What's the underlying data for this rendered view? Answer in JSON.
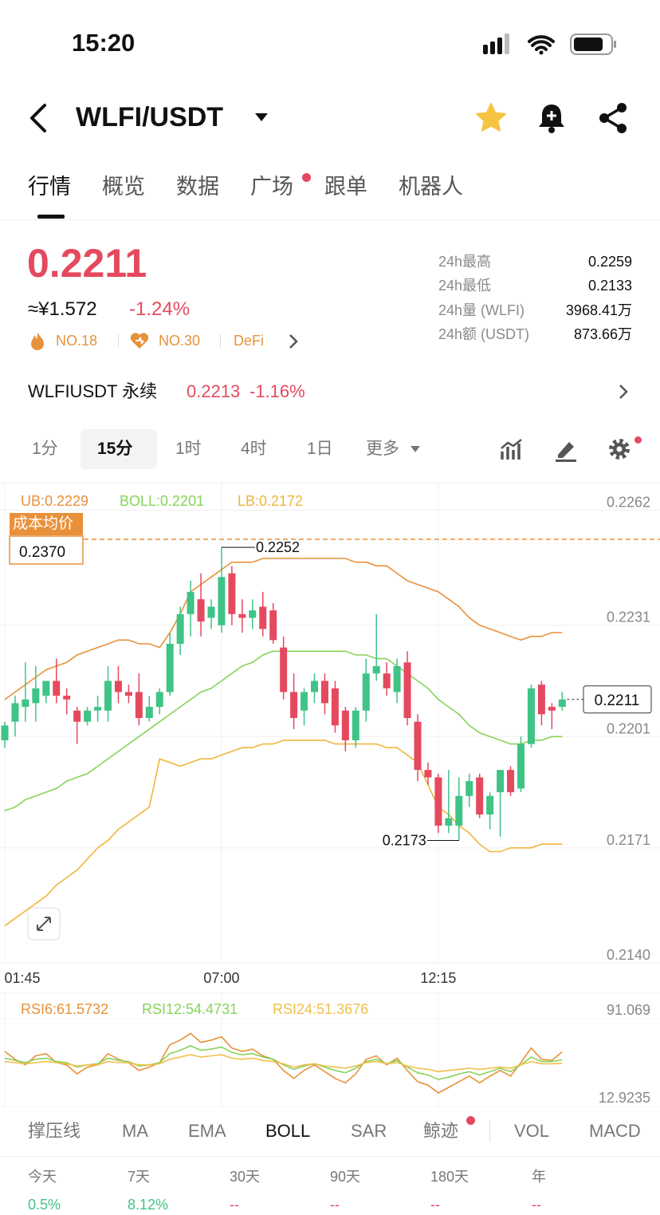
{
  "status_bar": {
    "time": "15:20"
  },
  "header": {
    "pair": "WLFI/USDT"
  },
  "tabs": [
    "行情",
    "概览",
    "数据",
    "广场",
    "跟单",
    "机器人"
  ],
  "price": {
    "last": "0.2211",
    "cny": "≈¥1.572",
    "change": "-1.24%",
    "badges": [
      "NO.18",
      "NO.30",
      "DeFi"
    ]
  },
  "stats": [
    {
      "label": "24h最高",
      "value": "0.2259"
    },
    {
      "label": "24h最低",
      "value": "0.2133"
    },
    {
      "label": "24h量 (WLFI)",
      "value": "3968.41万"
    },
    {
      "label": "24h额 (USDT)",
      "value": "873.66万"
    }
  ],
  "contract": {
    "name": "WLFIUSDT 永续",
    "price": "0.2213",
    "change": "-1.16%"
  },
  "intervals": [
    "1分",
    "15分",
    "1时",
    "4时",
    "1日",
    "更多"
  ],
  "chart": {
    "type": "candlestick",
    "up_color": "#3fc386",
    "down_color": "#e5495f",
    "ylim": [
      0.214,
      0.2269
    ],
    "yticks": [
      0.2262,
      0.2231,
      0.2201,
      0.2171,
      {
        "value": 0.214,
        "label": "0.2140"
      }
    ],
    "xticks": [
      {
        "value": 0,
        "label": "01:45"
      },
      {
        "value": 21,
        "label": "07:00"
      },
      {
        "value": 42,
        "label": "12:15"
      }
    ],
    "grid": true,
    "open": [
      0.22,
      0.2205,
      0.2209,
      0.221,
      0.2212,
      0.2216,
      0.2212,
      0.2208,
      0.2205,
      0.2208,
      0.2208,
      0.2216,
      0.2213,
      0.2213,
      0.2206,
      0.2209,
      0.2213,
      0.2226,
      0.2234,
      0.2238,
      0.2233,
      0.2231,
      0.2245,
      0.2234,
      0.2233,
      0.2236,
      0.2235,
      0.2225,
      0.2213,
      0.2208,
      0.2213,
      0.2216,
      0.2214,
      0.2208,
      0.22,
      0.2208,
      0.2218,
      0.2218,
      0.2213,
      0.2221,
      0.2205,
      0.2192,
      0.219,
      0.2177,
      0.2177,
      0.2185,
      0.219,
      0.218,
      0.2186,
      0.2192,
      0.2187,
      0.2199,
      0.2215,
      0.2209,
      0.2209
    ],
    "high": [
      0.2205,
      0.2212,
      0.2221,
      0.222,
      0.2216,
      0.2222,
      0.2214,
      0.2209,
      0.2209,
      0.2212,
      0.222,
      0.222,
      0.2215,
      0.2218,
      0.2212,
      0.2214,
      0.2229,
      0.2236,
      0.2243,
      0.2245,
      0.2238,
      0.2252,
      0.2247,
      0.2238,
      0.2238,
      0.224,
      0.2237,
      0.2228,
      0.2218,
      0.2214,
      0.2218,
      0.2218,
      0.2216,
      0.2209,
      0.2209,
      0.2222,
      0.2234,
      0.2221,
      0.2222,
      0.2224,
      0.2207,
      0.2194,
      0.2191,
      0.2192,
      0.219,
      0.2191,
      0.2191,
      0.2186,
      0.2192,
      0.2193,
      0.2201,
      0.2215,
      0.2216,
      0.221,
      0.2213
    ],
    "low": [
      0.2198,
      0.2201,
      0.2205,
      0.2205,
      0.221,
      0.221,
      0.2207,
      0.2199,
      0.2204,
      0.2205,
      0.2205,
      0.221,
      0.221,
      0.2204,
      0.2205,
      0.2207,
      0.2212,
      0.2223,
      0.2228,
      0.2228,
      0.223,
      0.2229,
      0.2231,
      0.2229,
      0.223,
      0.2228,
      0.2226,
      0.2211,
      0.2203,
      0.2204,
      0.221,
      0.2207,
      0.2202,
      0.2197,
      0.2198,
      0.2205,
      0.2216,
      0.2212,
      0.221,
      0.2204,
      0.2189,
      0.2188,
      0.2175,
      0.2175,
      0.2173,
      0.2182,
      0.2179,
      0.2176,
      0.2174,
      0.2185,
      0.2186,
      0.2198,
      0.2204,
      0.2203,
      0.2208
    ],
    "close": [
      0.2204,
      0.221,
      0.2211,
      0.2214,
      0.2216,
      0.2212,
      0.2211,
      0.2205,
      0.2208,
      0.2209,
      0.2216,
      0.2213,
      0.2212,
      0.2206,
      0.2209,
      0.2213,
      0.2226,
      0.2234,
      0.224,
      0.2232,
      0.2236,
      0.2244,
      0.2234,
      0.2233,
      0.2235,
      0.223,
      0.2227,
      0.2213,
      0.2206,
      0.2213,
      0.2216,
      0.221,
      0.2204,
      0.22,
      0.2208,
      0.2218,
      0.222,
      0.2214,
      0.222,
      0.2206,
      0.2192,
      0.219,
      0.2177,
      0.2179,
      0.2185,
      0.2189,
      0.218,
      0.2185,
      0.2192,
      0.2186,
      0.2199,
      0.2214,
      0.2207,
      0.2208,
      0.2211
    ],
    "bands": [
      {
        "label": "UB:0.2229",
        "color": "#e8913a",
        "values": [
          0.2211,
          0.2213,
          0.2215,
          0.2217,
          0.2219,
          0.222,
          0.2221,
          0.2223,
          0.2224,
          0.2225,
          0.2226,
          0.2227,
          0.2227,
          0.2226,
          0.2226,
          0.2225,
          0.2229,
          0.2234,
          0.224,
          0.2242,
          0.2244,
          0.2246,
          0.2248,
          0.2248,
          0.2248,
          0.2249,
          0.2249,
          0.2249,
          0.2249,
          0.2249,
          0.2249,
          0.2249,
          0.2249,
          0.2249,
          0.2248,
          0.2248,
          0.2247,
          0.2247,
          0.2245,
          0.2243,
          0.2242,
          0.2241,
          0.224,
          0.2238,
          0.2236,
          0.2233,
          0.2231,
          0.223,
          0.2229,
          0.2228,
          0.2227,
          0.2228,
          0.2228,
          0.2229,
          0.2229
        ]
      },
      {
        "label": "BOLL:0.2201",
        "color": "#86d35a",
        "values": [
          0.2181,
          0.2182,
          0.2184,
          0.2185,
          0.2186,
          0.2187,
          0.2189,
          0.219,
          0.2191,
          0.2193,
          0.2195,
          0.2197,
          0.2199,
          0.2201,
          0.2203,
          0.2205,
          0.2207,
          0.2209,
          0.2211,
          0.2213,
          0.2214,
          0.2216,
          0.2218,
          0.222,
          0.2221,
          0.2223,
          0.2224,
          0.2224,
          0.2224,
          0.2224,
          0.2224,
          0.2224,
          0.2224,
          0.2224,
          0.2223,
          0.2223,
          0.2222,
          0.2222,
          0.222,
          0.2218,
          0.2216,
          0.2214,
          0.2211,
          0.2209,
          0.2207,
          0.2204,
          0.2202,
          0.2201,
          0.22,
          0.2199,
          0.2199,
          0.22,
          0.22,
          0.2201,
          0.2201
        ]
      },
      {
        "label": "LB:0.2172",
        "color": "#f0b53a",
        "values": [
          0.215,
          0.2152,
          0.2154,
          0.2156,
          0.2158,
          0.2161,
          0.2163,
          0.2165,
          0.2168,
          0.2171,
          0.2173,
          0.2176,
          0.2178,
          0.218,
          0.2182,
          0.2195,
          0.2194,
          0.2193,
          0.2194,
          0.2195,
          0.2195,
          0.2196,
          0.2197,
          0.2198,
          0.2198,
          0.2199,
          0.2199,
          0.22,
          0.22,
          0.22,
          0.22,
          0.22,
          0.2199,
          0.2199,
          0.2199,
          0.2199,
          0.2199,
          0.2198,
          0.2198,
          0.2196,
          0.2194,
          0.2188,
          0.2182,
          0.218,
          0.2177,
          0.2175,
          0.2172,
          0.217,
          0.217,
          0.2171,
          0.2171,
          0.2171,
          0.2172,
          0.2172,
          0.2172
        ]
      }
    ],
    "cost_title": "成本均价",
    "cost_value": "0.2370",
    "high_label": "0.2252",
    "low_label": "0.2173",
    "last_label": "0.2211",
    "rsi": {
      "ylim": [
        12.9235,
        91.069
      ],
      "yticks": [
        91.069,
        12.9235
      ],
      "series": [
        {
          "label": "RSI6:61.5732",
          "color": "#e8913a",
          "values": [
            62,
            55,
            50,
            58,
            60,
            52,
            50,
            42,
            48,
            50,
            60,
            55,
            52,
            45,
            48,
            52,
            68,
            72,
            78,
            70,
            72,
            75,
            65,
            62,
            64,
            58,
            55,
            45,
            38,
            45,
            50,
            44,
            38,
            34,
            42,
            55,
            58,
            50,
            56,
            45,
            35,
            32,
            25,
            30,
            35,
            40,
            34,
            40,
            45,
            40,
            52,
            65,
            55,
            54,
            61.5732
          ]
        },
        {
          "label": "RSI12:54.4731",
          "color": "#86d35a",
          "values": [
            56,
            54,
            52,
            55,
            56,
            53,
            52,
            48,
            50,
            51,
            56,
            54,
            53,
            49,
            50,
            52,
            60,
            63,
            67,
            63,
            64,
            66,
            61,
            59,
            60,
            57,
            55,
            50,
            46,
            49,
            51,
            48,
            45,
            43,
            47,
            53,
            55,
            51,
            54,
            48,
            43,
            41,
            37,
            39,
            42,
            44,
            41,
            44,
            47,
            44,
            50,
            57,
            53,
            53,
            54.4731
          ]
        },
        {
          "label": "RSI24:51.3676",
          "color": "#f0c04a",
          "values": [
            53,
            52,
            51,
            52,
            53,
            52,
            51,
            49,
            50,
            50,
            53,
            52,
            52,
            50,
            50,
            51,
            55,
            57,
            59,
            57,
            58,
            59,
            56,
            55,
            56,
            54,
            53,
            51,
            48,
            50,
            51,
            49,
            48,
            47,
            49,
            52,
            53,
            51,
            52,
            49,
            47,
            46,
            44,
            45,
            46,
            47,
            46,
            47,
            48,
            47,
            50,
            53,
            51,
            51,
            51.3676
          ]
        }
      ]
    }
  },
  "indicators": [
    "撑压线",
    "MA",
    "EMA",
    "BOLL",
    "SAR",
    "鲸迹",
    "VOL",
    "MACD"
  ],
  "returns": [
    {
      "label": "今天",
      "value": "0.5%"
    },
    {
      "label": "7天",
      "value": "8.12%"
    },
    {
      "label": "30天",
      "value": "--"
    },
    {
      "label": "90天",
      "value": "--"
    },
    {
      "label": "180天",
      "value": "--"
    },
    {
      "label": "年",
      "value": "--"
    }
  ]
}
